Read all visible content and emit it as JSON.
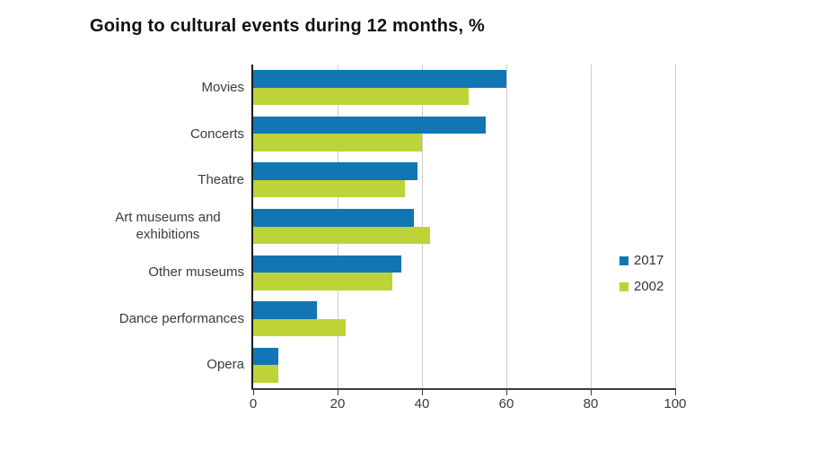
{
  "title": "Going to cultural events during 12 months, %",
  "legend": {
    "items": [
      {
        "label": "2017",
        "color": "#1276b4"
      },
      {
        "label": "2002",
        "color": "#bdd337"
      }
    ]
  },
  "chart_data": {
    "type": "bar",
    "orientation": "horizontal",
    "title": "Going to cultural events during 12 months, %",
    "categories": [
      "Movies",
      "Concerts",
      "Theatre",
      "Art museums and exhibitions",
      "Other museums",
      "Dance performances",
      "Opera"
    ],
    "series": [
      {
        "name": "2017",
        "color": "#1276b4",
        "values": [
          60,
          55,
          39,
          38,
          35,
          15,
          6
        ]
      },
      {
        "name": "2002",
        "color": "#bdd337",
        "values": [
          51,
          40,
          36,
          42,
          33,
          22,
          6
        ]
      }
    ],
    "xlabel": "",
    "ylabel": "",
    "xlim": [
      0,
      100
    ],
    "xticks": [
      0,
      20,
      40,
      60,
      80,
      100
    ],
    "grid": true,
    "legend_position": "middle-right",
    "colors": {
      "gridline": "#cccccc",
      "x_axis_line": "#3d3d3d",
      "y_axis_line": "#1a1a1a",
      "text": "#3a3a3a",
      "background": "#ffffff"
    }
  }
}
